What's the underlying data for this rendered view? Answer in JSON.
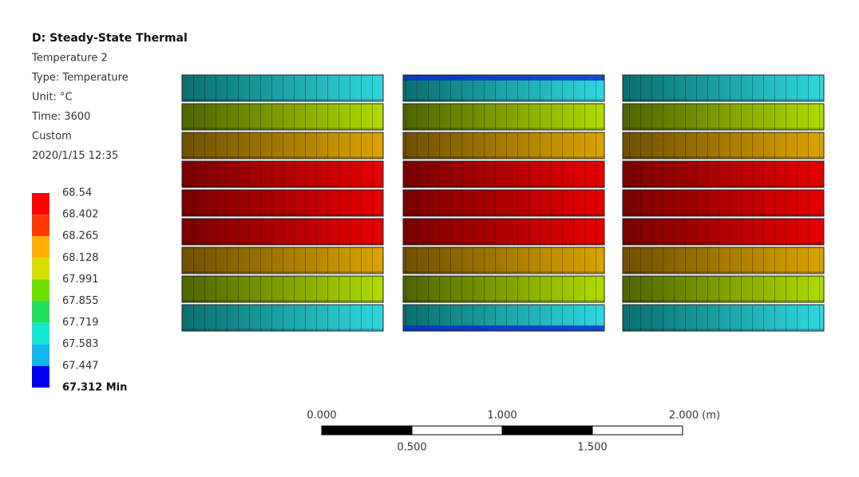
{
  "header": {
    "title": "D: Steady-State Thermal",
    "lines": [
      "Temperature 2",
      "Type: Temperature",
      "Unit: °C",
      "Time: 3600",
      "Custom",
      "2020/1/15 12:35"
    ]
  },
  "legend": {
    "labels": [
      "68.54",
      "68.402",
      "68.265",
      "68.128",
      "67.991",
      "67.855",
      "67.719",
      "67.583",
      "67.447",
      "67.312 Min"
    ],
    "colors": [
      "#ff0000",
      "#ff3a00",
      "#ffb000",
      "#d8e000",
      "#6de000",
      "#1ee05a",
      "#10e8d0",
      "#10b8f0",
      "#0000f0"
    ]
  },
  "scale_bar": {
    "top_labels": [
      "0.000",
      "1.000",
      "2.000 (m)"
    ],
    "bottom_labels": [
      "0.500",
      "1.500"
    ]
  }
}
